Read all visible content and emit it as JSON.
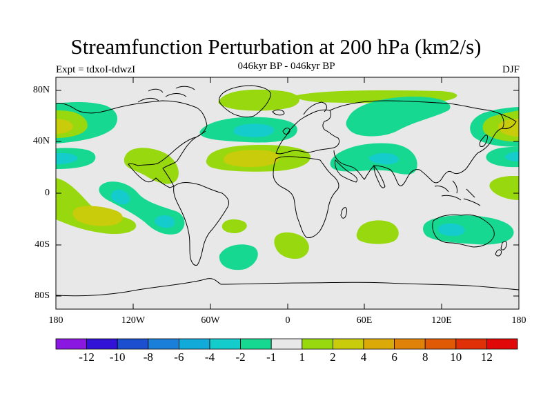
{
  "title": "Streamfunction Perturbation at 200 hPa (km2/s)",
  "subtitle": "046kyr BP - 046kyr BP",
  "left_label": "Expt = tdxoI-tdwzI",
  "right_label": "DJF",
  "lat_ticks": [
    "80N",
    "40N",
    "0",
    "40S",
    "80S"
  ],
  "lon_ticks": [
    "180",
    "120W",
    "60W",
    "0",
    "60E",
    "120E",
    "180"
  ],
  "colorbar": {
    "labels": [
      "-12",
      "-10",
      "-8",
      "-6",
      "-4",
      "-2",
      "-1",
      "1",
      "2",
      "4",
      "6",
      "8",
      "10",
      "12"
    ],
    "colors": [
      "#8a18e0",
      "#3212d6",
      "#1c4fd0",
      "#1a7fd8",
      "#12aad8",
      "#14cccc",
      "#16d890",
      "#e8e8e8",
      "#98d80e",
      "#c8cc0a",
      "#dcaa08",
      "#e08208",
      "#e05a06",
      "#e03008",
      "#e00808"
    ]
  },
  "colors": {
    "background": "#e8e8e8",
    "coast": "#000000"
  }
}
